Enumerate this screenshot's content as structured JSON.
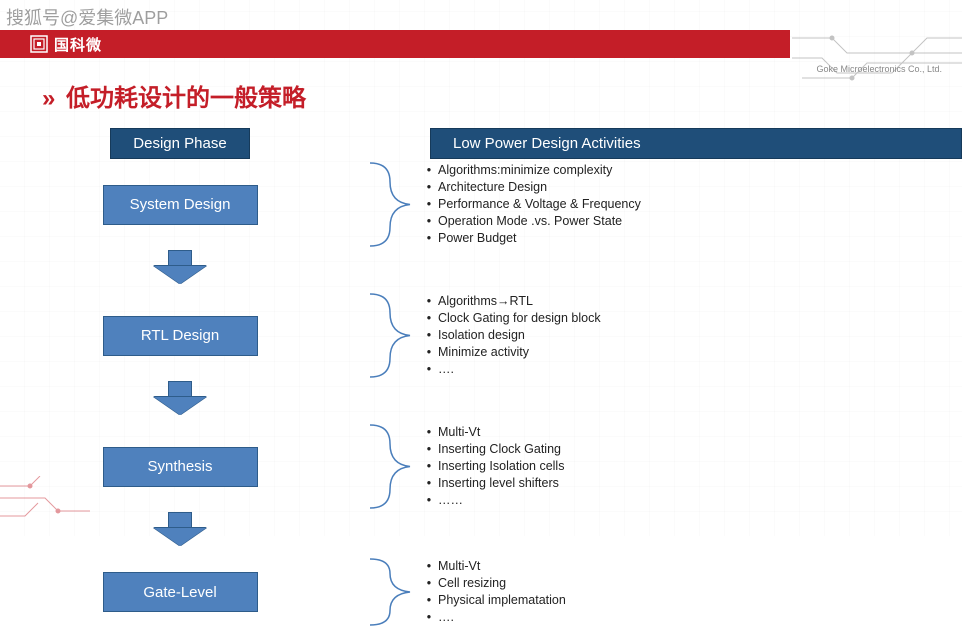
{
  "watermark": "搜狐号@爱集微APP",
  "brand": "国科微",
  "company": "Goke Microelectronics Co., Ltd.",
  "title_prefix": "»",
  "title": "低功耗设计的一般策略",
  "colors": {
    "red": "#c41e28",
    "header_box": "#1f4e79",
    "phase_box_fill": "#4f81bd",
    "phase_box_border": "#2e5c8a",
    "brace_stroke": "#4a7ebb",
    "text": "#222222",
    "bg": "#ffffff"
  },
  "headers": {
    "left": "Design Phase",
    "right": "Low Power Design Activities"
  },
  "phases": [
    {
      "name": "System Design",
      "activities": [
        "Algorithms:minimize complexity",
        "Architecture Design",
        "Performance & Voltage & Frequency",
        "Operation Mode .vs. Power State",
        "Power Budget"
      ]
    },
    {
      "name": "RTL Design",
      "activities": [
        "Algorithms→RTL",
        "Clock Gating for design block",
        "Isolation design",
        "Minimize activity",
        "…."
      ]
    },
    {
      "name": "Synthesis",
      "activities": [
        "Multi-Vt",
        "Inserting Clock Gating",
        "Inserting Isolation cells",
        "Inserting level shifters",
        "……"
      ]
    },
    {
      "name": "Gate-Level",
      "activities": [
        "Multi-Vt",
        "Cell resizing",
        "Physical implematation",
        "…."
      ]
    }
  ]
}
